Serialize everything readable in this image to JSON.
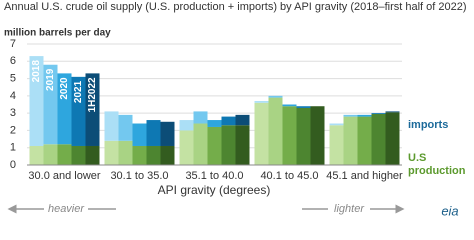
{
  "chart_data": {
    "type": "stacked_grouped_bar",
    "title": "Annual U.S. crude oil supply (U.S. production + imports) by API gravity (2018–first half of 2022)",
    "subtitle": "million barrels per day",
    "x_label": "API gravity (degrees)",
    "annotations": {
      "left": "heavier",
      "right": "lighter"
    },
    "logo": "eia",
    "categories": [
      "30.0 and lower",
      "30.1 to 35.0",
      "35.1 to 40.0",
      "40.1 to 45.0",
      "45.1 and higher"
    ],
    "segment_labels": {
      "imports": [
        "imports"
      ],
      "production": [
        "U.S",
        "production"
      ]
    },
    "series": [
      {
        "name": "2018",
        "production_color": "#c4e2a3",
        "imports_color": "#abdff6",
        "production": [
          1.1,
          1.4,
          2.0,
          3.6,
          2.3
        ],
        "imports": [
          5.2,
          1.7,
          0.6,
          0.1,
          0.1
        ]
      },
      {
        "name": "2019",
        "production_color": "#a9d384",
        "imports_color": "#73c8ef",
        "production": [
          1.2,
          1.4,
          2.4,
          3.9,
          2.8
        ],
        "imports": [
          4.6,
          1.5,
          0.7,
          0.1,
          0.1
        ]
      },
      {
        "name": "2020",
        "production_color": "#74ad4a",
        "imports_color": "#2ea6de",
        "production": [
          1.2,
          1.1,
          2.2,
          3.4,
          2.8
        ],
        "imports": [
          4.1,
          1.3,
          0.4,
          0.1,
          0.1
        ]
      },
      {
        "name": "2021",
        "production_color": "#4d8530",
        "imports_color": "#0e78b3",
        "production": [
          1.1,
          1.1,
          2.3,
          3.3,
          2.95
        ],
        "imports": [
          4.0,
          1.5,
          0.5,
          0.1,
          0.05
        ]
      },
      {
        "name": "1H2022",
        "production_color": "#335c1f",
        "imports_color": "#0c4d77",
        "production": [
          1.1,
          1.1,
          2.3,
          3.4,
          3.05
        ],
        "imports": [
          4.2,
          1.4,
          0.6,
          0.0,
          0.05
        ]
      }
    ],
    "ylim": [
      0,
      7
    ],
    "yticks": [
      0,
      1,
      2,
      3,
      4,
      5,
      6,
      7
    ],
    "grid": true
  }
}
